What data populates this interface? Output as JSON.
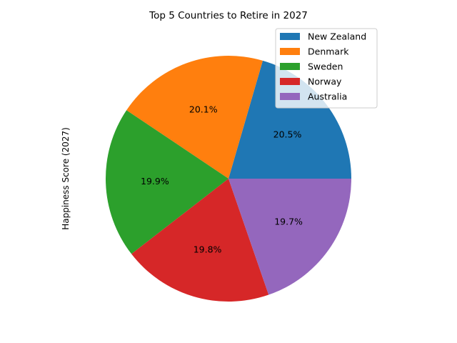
{
  "chart_data": {
    "type": "pie",
    "title": "Top 5 Countries to Retire in 2027",
    "ylabel": "Happiness Score (2027)",
    "legend_position": "upper right",
    "slices": [
      {
        "label": "New Zealand",
        "percent": 20.5,
        "display": "20.5%",
        "color": "#1f77b4"
      },
      {
        "label": "Denmark",
        "percent": 20.1,
        "display": "20.1%",
        "color": "#ff7f0e"
      },
      {
        "label": "Sweden",
        "percent": 19.9,
        "display": "19.9%",
        "color": "#2ca02c"
      },
      {
        "label": "Norway",
        "percent": 19.8,
        "display": "19.8%",
        "color": "#d62728"
      },
      {
        "label": "Australia",
        "percent": 19.7,
        "display": "19.7%",
        "color": "#9467bd"
      }
    ]
  }
}
